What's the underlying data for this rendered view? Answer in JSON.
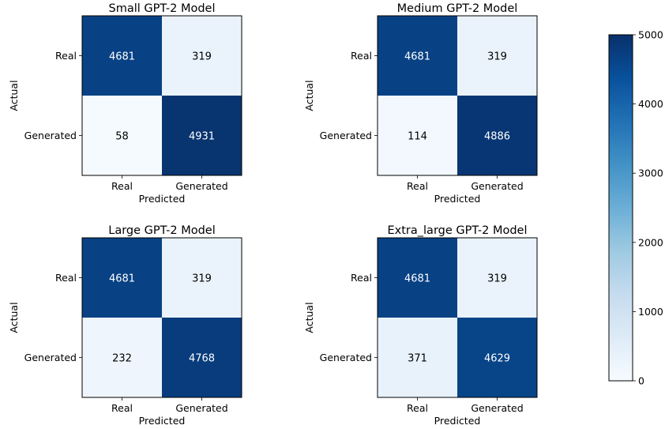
{
  "chart_data": {
    "type": "heatmap",
    "colorbar": {
      "min": 0,
      "max": 5000,
      "ticks": [
        0,
        1000,
        2000,
        3000,
        4000,
        5000
      ],
      "colormap": "Blues",
      "colormap_low": "#f7fbff",
      "colormap_high": "#08306b"
    },
    "panels": [
      {
        "title": "Small GPT-2 Model",
        "xlabel": "Predicted",
        "ylabel": "Actual",
        "x_categories": [
          "Real",
          "Generated"
        ],
        "y_categories": [
          "Real",
          "Generated"
        ],
        "matrix": [
          [
            4681,
            319
          ],
          [
            58,
            4931
          ]
        ]
      },
      {
        "title": "Medium GPT-2 Model",
        "xlabel": "Predicted",
        "ylabel": "Actual",
        "x_categories": [
          "Real",
          "Generated"
        ],
        "y_categories": [
          "Real",
          "Generated"
        ],
        "matrix": [
          [
            4681,
            319
          ],
          [
            114,
            4886
          ]
        ]
      },
      {
        "title": "Large GPT-2 Model",
        "xlabel": "Predicted",
        "ylabel": "Actual",
        "x_categories": [
          "Real",
          "Generated"
        ],
        "y_categories": [
          "Real",
          "Generated"
        ],
        "matrix": [
          [
            4681,
            319
          ],
          [
            232,
            4768
          ]
        ]
      },
      {
        "title": "Extra_large GPT-2 Model",
        "xlabel": "Predicted",
        "ylabel": "Actual",
        "x_categories": [
          "Real",
          "Generated"
        ],
        "y_categories": [
          "Real",
          "Generated"
        ],
        "matrix": [
          [
            4681,
            319
          ],
          [
            371,
            4629
          ]
        ]
      }
    ]
  }
}
